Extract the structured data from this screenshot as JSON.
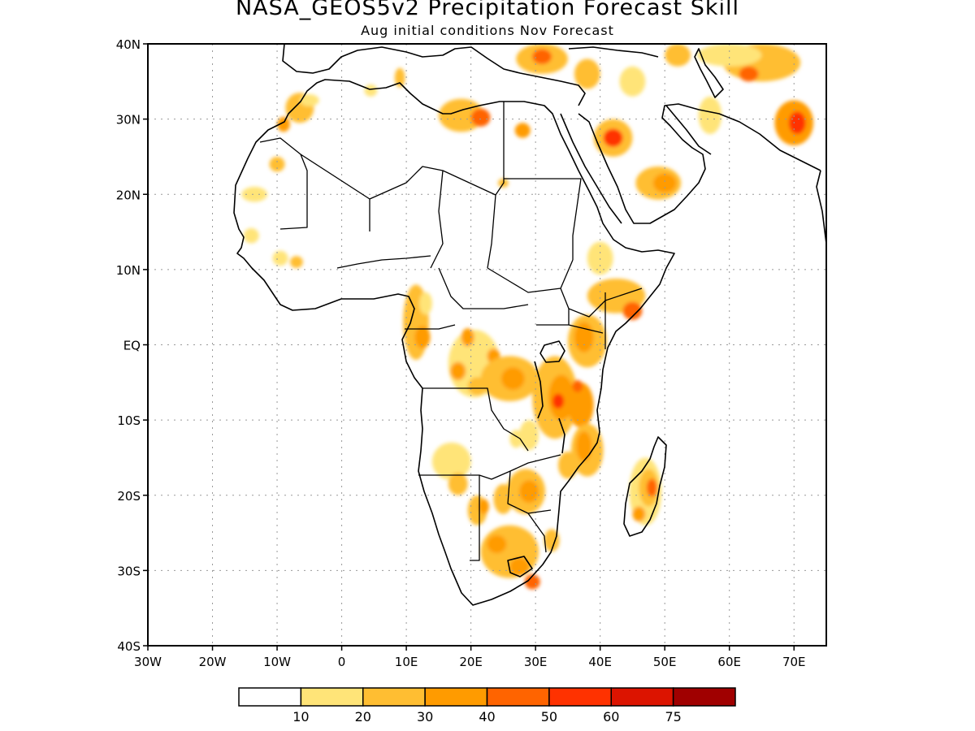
{
  "title": "NASA_GEOS5v2 Precipitation Forecast Skill",
  "subtitle": "Aug initial conditions  Nov Forecast",
  "map": {
    "lon_range": [
      -30,
      75
    ],
    "lat_range": [
      -40,
      40
    ],
    "lat_ticks": [
      {
        "lat": 40,
        "label": "40N"
      },
      {
        "lat": 30,
        "label": "30N"
      },
      {
        "lat": 20,
        "label": "20N"
      },
      {
        "lat": 10,
        "label": "10N"
      },
      {
        "lat": 0,
        "label": "EQ"
      },
      {
        "lat": -10,
        "label": "10S"
      },
      {
        "lat": -20,
        "label": "20S"
      },
      {
        "lat": -30,
        "label": "30S"
      },
      {
        "lat": -40,
        "label": "40S"
      }
    ],
    "lon_ticks": [
      {
        "lon": -30,
        "label": "30W"
      },
      {
        "lon": -20,
        "label": "20W"
      },
      {
        "lon": -10,
        "label": "10W"
      },
      {
        "lon": 0,
        "label": "0"
      },
      {
        "lon": 10,
        "label": "10E"
      },
      {
        "lon": 20,
        "label": "20E"
      },
      {
        "lon": 30,
        "label": "30E"
      },
      {
        "lon": 40,
        "label": "40E"
      },
      {
        "lon": 50,
        "label": "50E"
      },
      {
        "lon": 60,
        "label": "60E"
      },
      {
        "lon": 70,
        "label": "70E"
      }
    ],
    "gridlines": "dotted"
  },
  "colorbar": {
    "colors": [
      "#ffffff",
      "#ffe478",
      "#ffbe32",
      "#ff9b00",
      "#ff6400",
      "#ff3200",
      "#dc1400",
      "#a00000"
    ],
    "labels": [
      "10",
      "20",
      "30",
      "40",
      "50",
      "60",
      "75"
    ]
  },
  "skill_patches": [
    {
      "lon": 18.5,
      "lat": 30.5,
      "rx": 3.5,
      "ry": 2.2,
      "level": 2
    },
    {
      "lon": 21.5,
      "lat": 30.2,
      "rx": 1.5,
      "ry": 1.2,
      "level": 4
    },
    {
      "lon": 28,
      "lat": 28.5,
      "rx": 1.2,
      "ry": 1.0,
      "level": 3
    },
    {
      "lon": 42,
      "lat": 27.5,
      "rx": 3.0,
      "ry": 2.5,
      "level": 2
    },
    {
      "lon": 42,
      "lat": 27.5,
      "rx": 1.5,
      "ry": 1.2,
      "level": 5
    },
    {
      "lon": 49,
      "lat": 21.5,
      "rx": 3.5,
      "ry": 2.2,
      "level": 2
    },
    {
      "lon": 50,
      "lat": 21.5,
      "rx": 1.8,
      "ry": 1.3,
      "level": 3
    },
    {
      "lon": 57,
      "lat": 30.5,
      "rx": 1.8,
      "ry": 2.5,
      "level": 1
    },
    {
      "lon": 70,
      "lat": 29.5,
      "rx": 3.0,
      "ry": 3.0,
      "level": 3
    },
    {
      "lon": 70.5,
      "lat": 29.5,
      "rx": 1.3,
      "ry": 1.5,
      "level": 5
    },
    {
      "lon": 65,
      "lat": 37.5,
      "rx": 6.0,
      "ry": 2.5,
      "level": 2
    },
    {
      "lon": 63,
      "lat": 36,
      "rx": 1.5,
      "ry": 1.0,
      "level": 4
    },
    {
      "lon": 60,
      "lat": 38.5,
      "rx": 5.0,
      "ry": 1.5,
      "level": 1
    },
    {
      "lon": 52,
      "lat": 38.5,
      "rx": 2.0,
      "ry": 1.5,
      "level": 2
    },
    {
      "lon": 31,
      "lat": 38,
      "rx": 4.0,
      "ry": 2.0,
      "level": 2
    },
    {
      "lon": 31,
      "lat": 38.3,
      "rx": 1.5,
      "ry": 1.0,
      "level": 4
    },
    {
      "lon": 38,
      "lat": 36,
      "rx": 2.0,
      "ry": 2.0,
      "level": 2
    },
    {
      "lon": 45,
      "lat": 35,
      "rx": 2.0,
      "ry": 2.0,
      "level": 1
    },
    {
      "lon": 25,
      "lat": 21.5,
      "rx": 0.8,
      "ry": 0.6,
      "level": 2
    },
    {
      "lon": -6.5,
      "lat": 31.5,
      "rx": 2.2,
      "ry": 2.0,
      "level": 2
    },
    {
      "lon": -9,
      "lat": 29.3,
      "rx": 1.0,
      "ry": 1.0,
      "level": 3
    },
    {
      "lon": -10,
      "lat": 24,
      "rx": 1.2,
      "ry": 1.0,
      "level": 2
    },
    {
      "lon": -13.5,
      "lat": 20,
      "rx": 2.0,
      "ry": 1.0,
      "level": 1
    },
    {
      "lon": -14,
      "lat": 14.5,
      "rx": 1.2,
      "ry": 1.0,
      "level": 1
    },
    {
      "lon": -5,
      "lat": 32.5,
      "rx": 1.5,
      "ry": 0.8,
      "level": 1
    },
    {
      "lon": 4.5,
      "lat": 33.8,
      "rx": 1.0,
      "ry": 0.8,
      "level": 1
    },
    {
      "lon": 9,
      "lat": 35.5,
      "rx": 0.8,
      "ry": 1.3,
      "level": 2
    },
    {
      "lon": -9.5,
      "lat": 11.5,
      "rx": 1.2,
      "ry": 1.0,
      "level": 1
    },
    {
      "lon": -7,
      "lat": 11.0,
      "rx": 1.0,
      "ry": 0.8,
      "level": 2
    },
    {
      "lon": 40,
      "lat": 11.5,
      "rx": 2.0,
      "ry": 2.2,
      "level": 1
    },
    {
      "lon": 42.5,
      "lat": 6.5,
      "rx": 4.5,
      "ry": 2.3,
      "level": 2
    },
    {
      "lon": 45,
      "lat": 4.5,
      "rx": 1.5,
      "ry": 1.2,
      "level": 4
    },
    {
      "lon": 38,
      "lat": 0.5,
      "rx": 3.0,
      "ry": 3.5,
      "level": 2
    },
    {
      "lon": 37.5,
      "lat": 1.0,
      "rx": 1.5,
      "ry": 2.0,
      "level": 3
    },
    {
      "lon": 11.5,
      "lat": 3.0,
      "rx": 2.0,
      "ry": 5.0,
      "level": 2
    },
    {
      "lon": 12.5,
      "lat": 1.0,
      "rx": 1.2,
      "ry": 1.5,
      "level": 3
    },
    {
      "lon": 13,
      "lat": 5.5,
      "rx": 1.0,
      "ry": 1.5,
      "level": 1
    },
    {
      "lon": 20.5,
      "lat": -2.5,
      "rx": 4.0,
      "ry": 4.5,
      "level": 1
    },
    {
      "lon": 19.5,
      "lat": 1.0,
      "rx": 1.0,
      "ry": 1.2,
      "level": 3
    },
    {
      "lon": 18,
      "lat": -3.5,
      "rx": 1.2,
      "ry": 1.2,
      "level": 3
    },
    {
      "lon": 23.5,
      "lat": -1.5,
      "rx": 1.0,
      "ry": 1.0,
      "level": 3
    },
    {
      "lon": 26,
      "lat": -4.5,
      "rx": 4.5,
      "ry": 3.0,
      "level": 2
    },
    {
      "lon": 26.5,
      "lat": -4.5,
      "rx": 1.8,
      "ry": 1.5,
      "level": 3
    },
    {
      "lon": 21,
      "lat": -5.5,
      "rx": 1.5,
      "ry": 1.2,
      "level": 2
    },
    {
      "lon": 33,
      "lat": -7,
      "rx": 3.5,
      "ry": 5.5,
      "level": 2
    },
    {
      "lon": 34,
      "lat": -7,
      "rx": 2.0,
      "ry": 3.0,
      "level": 3
    },
    {
      "lon": 33.5,
      "lat": -7.5,
      "rx": 0.9,
      "ry": 1.0,
      "level": 5
    },
    {
      "lon": 37,
      "lat": -8,
      "rx": 2.0,
      "ry": 3.0,
      "level": 3
    },
    {
      "lon": 36.5,
      "lat": -5.5,
      "rx": 0.8,
      "ry": 0.8,
      "level": 4
    },
    {
      "lon": 38,
      "lat": -14,
      "rx": 2.5,
      "ry": 3.5,
      "level": 2
    },
    {
      "lon": 37.5,
      "lat": -13.5,
      "rx": 1.2,
      "ry": 2.0,
      "level": 3
    },
    {
      "lon": 35,
      "lat": -16,
      "rx": 1.5,
      "ry": 1.8,
      "level": 2
    },
    {
      "lon": 29,
      "lat": -12,
      "rx": 1.5,
      "ry": 2.0,
      "level": 1
    },
    {
      "lon": 27,
      "lat": -12.5,
      "rx": 1.0,
      "ry": 1.2,
      "level": 1
    },
    {
      "lon": 17,
      "lat": -15.5,
      "rx": 3.0,
      "ry": 2.5,
      "level": 1
    },
    {
      "lon": 18,
      "lat": -18.5,
      "rx": 1.5,
      "ry": 1.5,
      "level": 2
    },
    {
      "lon": 28.5,
      "lat": -19.5,
      "rx": 3.0,
      "ry": 3.0,
      "level": 2
    },
    {
      "lon": 29,
      "lat": -19.5,
      "rx": 1.5,
      "ry": 1.5,
      "level": 3
    },
    {
      "lon": 25,
      "lat": -20.5,
      "rx": 1.5,
      "ry": 2.0,
      "level": 2
    },
    {
      "lon": 21,
      "lat": -22,
      "rx": 1.5,
      "ry": 2.0,
      "level": 2
    },
    {
      "lon": 22,
      "lat": -21.5,
      "rx": 0.8,
      "ry": 1.0,
      "level": 3
    },
    {
      "lon": 26,
      "lat": -27.5,
      "rx": 4.5,
      "ry": 3.5,
      "level": 2
    },
    {
      "lon": 24,
      "lat": -26.5,
      "rx": 1.5,
      "ry": 1.2,
      "level": 3
    },
    {
      "lon": 27.5,
      "lat": -29.5,
      "rx": 1.5,
      "ry": 1.2,
      "level": 3
    },
    {
      "lon": 29.5,
      "lat": -31.5,
      "rx": 1.2,
      "ry": 1.0,
      "level": 4
    },
    {
      "lon": 32.5,
      "lat": -26,
      "rx": 1.2,
      "ry": 1.5,
      "level": 2
    },
    {
      "lon": 47,
      "lat": -19.5,
      "rx": 2.5,
      "ry": 4.5,
      "level": 1
    },
    {
      "lon": 47.5,
      "lat": -19,
      "rx": 1.5,
      "ry": 2.5,
      "level": 2
    },
    {
      "lon": 48,
      "lat": -19,
      "rx": 0.8,
      "ry": 1.2,
      "level": 4
    },
    {
      "lon": 46,
      "lat": -22.5,
      "rx": 1.0,
      "ry": 1.0,
      "level": 3
    }
  ]
}
